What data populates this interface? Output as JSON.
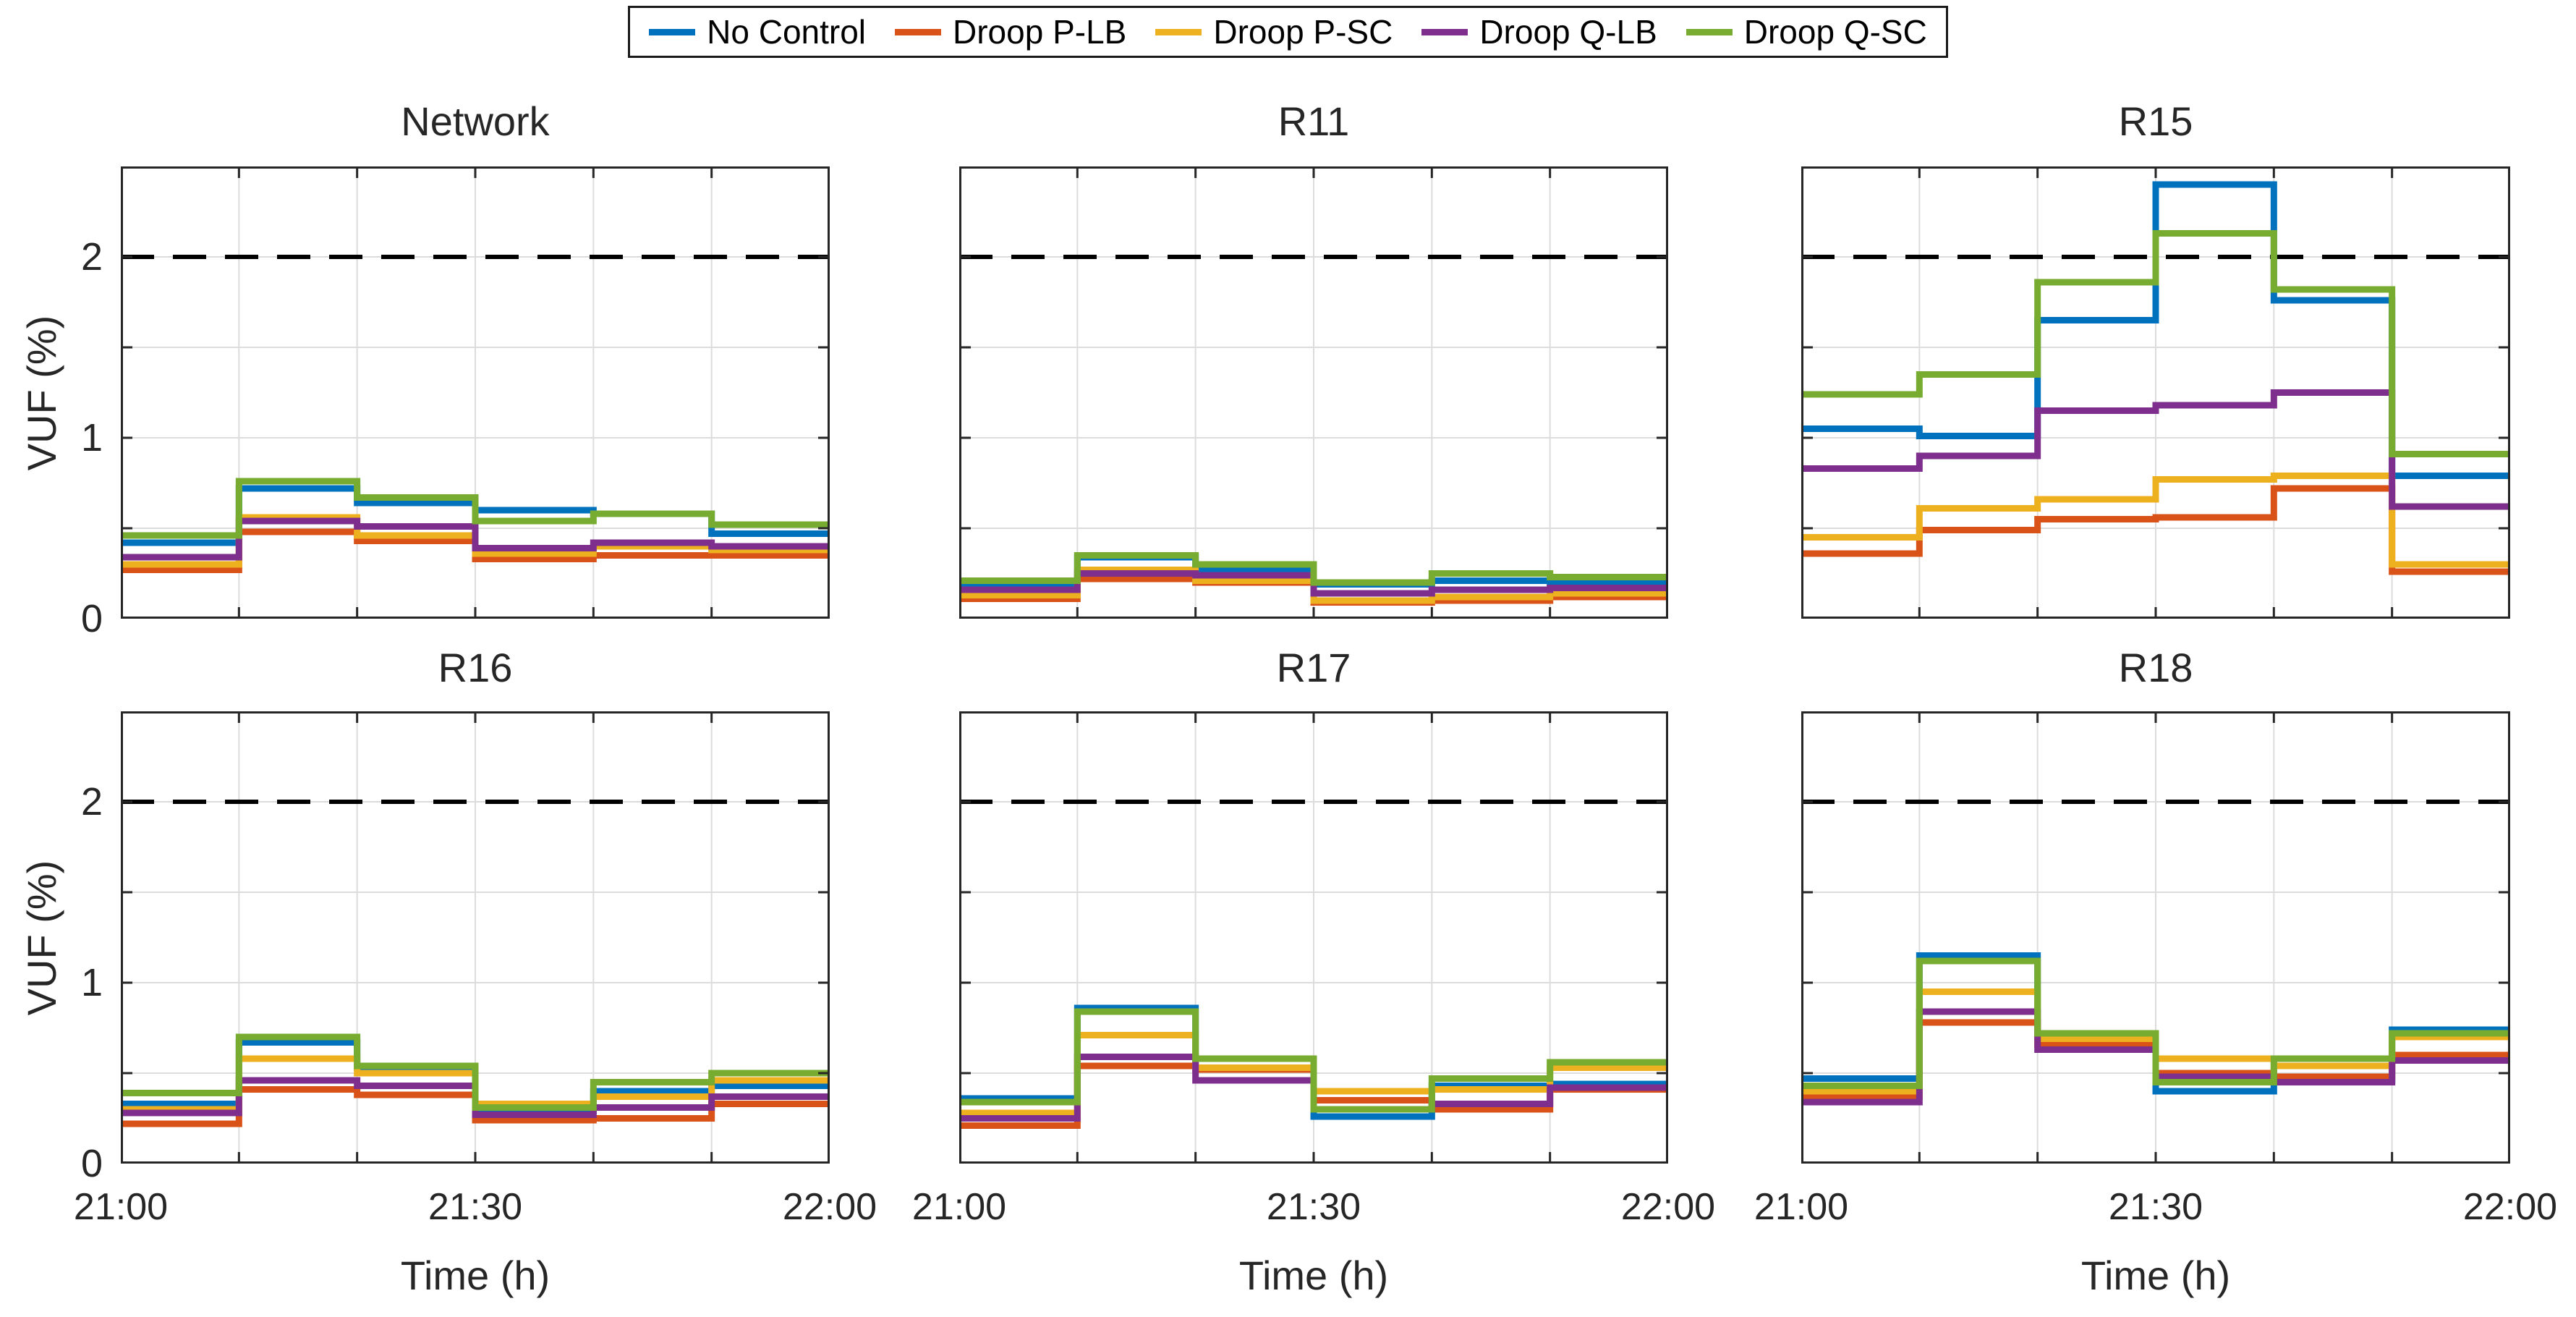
{
  "legend": {
    "items": [
      {
        "label": "No Control",
        "color": "#0072BD"
      },
      {
        "label": "Droop P-LB",
        "color": "#D95319"
      },
      {
        "label": "Droop P-SC",
        "color": "#EDB120"
      },
      {
        "label": "Droop Q-LB",
        "color": "#7E2F8E"
      },
      {
        "label": "Droop Q-SC",
        "color": "#77AC30"
      }
    ]
  },
  "axes": {
    "ylabel": "VUF (%)",
    "xlabel": "Time (h)",
    "yticklabels": [
      "0",
      "1",
      "2"
    ],
    "xticklabels": [
      "21:00",
      "21:30",
      "22:00"
    ],
    "ylim": [
      0,
      2.5
    ],
    "limit_value": 2,
    "ytick_grid": [
      0.5,
      1,
      1.5,
      2
    ],
    "xtick_grid_minutes": [
      10,
      20,
      30,
      40,
      50
    ],
    "x_total_minutes": 60,
    "x_step_minutes": 10,
    "grid_on": true,
    "legend_position": "top-center"
  },
  "style": {
    "grid_color": "#DCDCDC",
    "axis_color": "#262626",
    "limit_color": "#000000",
    "line_width": 9
  },
  "chart_data": [
    {
      "type": "line",
      "step": true,
      "title": "Network",
      "x_start": "21:00",
      "x_end": "22:00",
      "series": [
        {
          "name": "No Control",
          "color": "#0072BD",
          "values": [
            0.42,
            0.72,
            0.64,
            0.6,
            0.58,
            0.47
          ]
        },
        {
          "name": "Droop P-LB",
          "color": "#D95319",
          "values": [
            0.27,
            0.48,
            0.43,
            0.33,
            0.35,
            0.35
          ]
        },
        {
          "name": "Droop P-SC",
          "color": "#EDB120",
          "values": [
            0.3,
            0.56,
            0.46,
            0.36,
            0.4,
            0.38
          ]
        },
        {
          "name": "Droop Q-LB",
          "color": "#7E2F8E",
          "values": [
            0.34,
            0.54,
            0.51,
            0.39,
            0.42,
            0.4
          ]
        },
        {
          "name": "Droop Q-SC",
          "color": "#77AC30",
          "values": [
            0.46,
            0.76,
            0.67,
            0.54,
            0.58,
            0.52
          ]
        }
      ]
    },
    {
      "type": "line",
      "step": true,
      "title": "R11",
      "x_start": "21:00",
      "x_end": "22:00",
      "series": [
        {
          "name": "No Control",
          "color": "#0072BD",
          "values": [
            0.19,
            0.34,
            0.27,
            0.19,
            0.21,
            0.2
          ]
        },
        {
          "name": "Droop P-LB",
          "color": "#D95319",
          "values": [
            0.11,
            0.22,
            0.2,
            0.09,
            0.1,
            0.12
          ]
        },
        {
          "name": "Droop P-SC",
          "color": "#EDB120",
          "values": [
            0.13,
            0.27,
            0.21,
            0.1,
            0.12,
            0.14
          ]
        },
        {
          "name": "Droop Q-LB",
          "color": "#7E2F8E",
          "values": [
            0.16,
            0.25,
            0.24,
            0.14,
            0.16,
            0.17
          ]
        },
        {
          "name": "Droop Q-SC",
          "color": "#77AC30",
          "values": [
            0.21,
            0.35,
            0.3,
            0.2,
            0.25,
            0.23
          ]
        }
      ]
    },
    {
      "type": "line",
      "step": true,
      "title": "R15",
      "x_start": "21:00",
      "x_end": "22:00",
      "series": [
        {
          "name": "No Control",
          "color": "#0072BD",
          "values": [
            1.05,
            1.01,
            1.65,
            2.4,
            1.76,
            0.79
          ]
        },
        {
          "name": "Droop P-LB",
          "color": "#D95319",
          "values": [
            0.36,
            0.49,
            0.55,
            0.56,
            0.72,
            0.26
          ]
        },
        {
          "name": "Droop P-SC",
          "color": "#EDB120",
          "values": [
            0.45,
            0.61,
            0.66,
            0.77,
            0.79,
            0.3
          ]
        },
        {
          "name": "Droop Q-LB",
          "color": "#7E2F8E",
          "values": [
            0.83,
            0.9,
            1.15,
            1.18,
            1.25,
            0.62
          ]
        },
        {
          "name": "Droop Q-SC",
          "color": "#77AC30",
          "values": [
            1.24,
            1.35,
            1.86,
            2.13,
            1.82,
            0.91
          ]
        }
      ]
    },
    {
      "type": "line",
      "step": true,
      "title": "R16",
      "x_start": "21:00",
      "x_end": "22:00",
      "series": [
        {
          "name": "No Control",
          "color": "#0072BD",
          "values": [
            0.33,
            0.67,
            0.53,
            0.29,
            0.4,
            0.43
          ]
        },
        {
          "name": "Droop P-LB",
          "color": "#D95319",
          "values": [
            0.22,
            0.41,
            0.38,
            0.24,
            0.25,
            0.33
          ]
        },
        {
          "name": "Droop P-SC",
          "color": "#EDB120",
          "values": [
            0.3,
            0.58,
            0.5,
            0.33,
            0.37,
            0.46
          ]
        },
        {
          "name": "Droop Q-LB",
          "color": "#7E2F8E",
          "values": [
            0.28,
            0.46,
            0.43,
            0.27,
            0.31,
            0.37
          ]
        },
        {
          "name": "Droop Q-SC",
          "color": "#77AC30",
          "values": [
            0.39,
            0.7,
            0.54,
            0.31,
            0.45,
            0.5
          ]
        }
      ]
    },
    {
      "type": "line",
      "step": true,
      "title": "R17",
      "x_start": "21:00",
      "x_end": "22:00",
      "series": [
        {
          "name": "No Control",
          "color": "#0072BD",
          "values": [
            0.36,
            0.86,
            0.58,
            0.26,
            0.43,
            0.44
          ]
        },
        {
          "name": "Droop P-LB",
          "color": "#D95319",
          "values": [
            0.21,
            0.54,
            0.52,
            0.35,
            0.3,
            0.41
          ]
        },
        {
          "name": "Droop P-SC",
          "color": "#EDB120",
          "values": [
            0.28,
            0.71,
            0.53,
            0.4,
            0.41,
            0.53
          ]
        },
        {
          "name": "Droop Q-LB",
          "color": "#7E2F8E",
          "values": [
            0.25,
            0.59,
            0.46,
            0.3,
            0.33,
            0.42
          ]
        },
        {
          "name": "Droop Q-SC",
          "color": "#77AC30",
          "values": [
            0.34,
            0.84,
            0.58,
            0.3,
            0.47,
            0.56
          ]
        }
      ]
    },
    {
      "type": "line",
      "step": true,
      "title": "R18",
      "x_start": "21:00",
      "x_end": "22:00",
      "series": [
        {
          "name": "No Control",
          "color": "#0072BD",
          "values": [
            0.47,
            1.15,
            0.72,
            0.4,
            0.46,
            0.74
          ]
        },
        {
          "name": "Droop P-LB",
          "color": "#D95319",
          "values": [
            0.37,
            0.78,
            0.66,
            0.5,
            0.48,
            0.6
          ]
        },
        {
          "name": "Droop P-SC",
          "color": "#EDB120",
          "values": [
            0.4,
            0.95,
            0.69,
            0.58,
            0.54,
            0.7
          ]
        },
        {
          "name": "Droop Q-LB",
          "color": "#7E2F8E",
          "values": [
            0.34,
            0.84,
            0.63,
            0.48,
            0.45,
            0.57
          ]
        },
        {
          "name": "Droop Q-SC",
          "color": "#77AC30",
          "values": [
            0.43,
            1.12,
            0.72,
            0.45,
            0.58,
            0.72
          ]
        }
      ]
    }
  ]
}
